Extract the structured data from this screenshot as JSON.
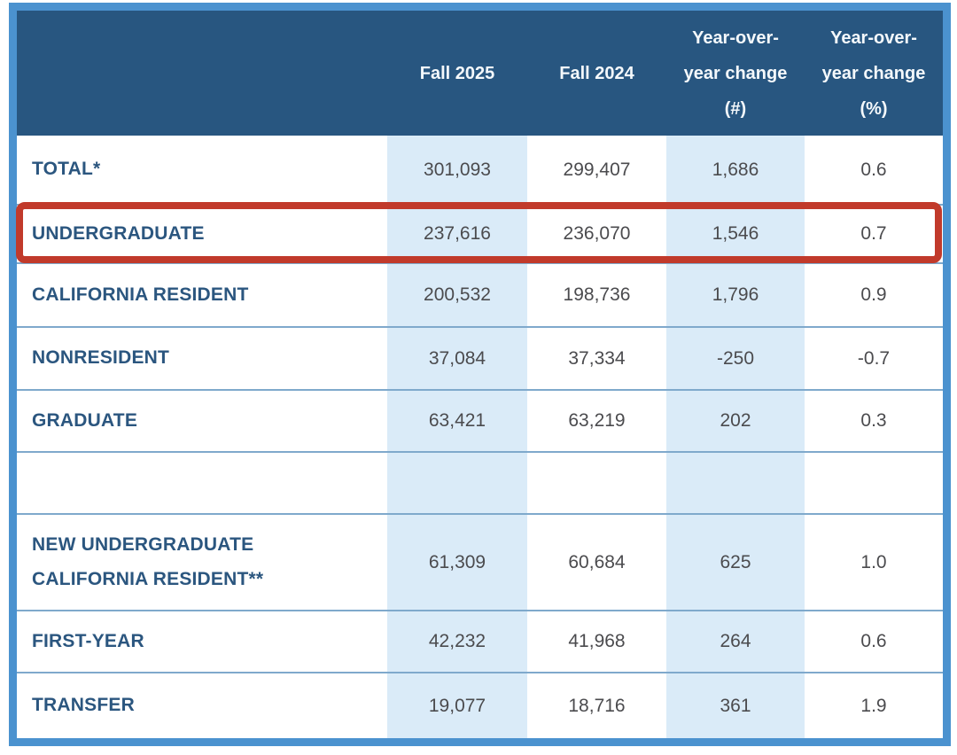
{
  "table": {
    "header": {
      "cols": [
        "Fall 2025",
        "Fall 2024",
        "Year-over-year change (#)",
        "Year-over-year change (%)"
      ]
    },
    "rows": [
      {
        "label": "TOTAL*",
        "values": [
          "301,093",
          "299,407",
          "1,686",
          "0.6"
        ]
      },
      {
        "label": "UNDERGRADUATE",
        "values": [
          "237,616",
          "236,070",
          "1,546",
          "0.7"
        ],
        "highlighted": true
      },
      {
        "label": "CALIFORNIA RESIDENT",
        "values": [
          "200,532",
          "198,736",
          "1,796",
          "0.9"
        ]
      },
      {
        "label": "NONRESIDENT",
        "values": [
          "37,084",
          "37,334",
          "-250",
          "-0.7"
        ]
      },
      {
        "label": "GRADUATE",
        "values": [
          "63,421",
          "63,219",
          "202",
          "0.3"
        ]
      },
      {
        "label": "",
        "values": [
          "",
          "",
          "",
          ""
        ]
      },
      {
        "label": "NEW UNDERGRADUATE CALIFORNIA RESIDENT**",
        "values": [
          "61,309",
          "60,684",
          "625",
          "1.0"
        ]
      },
      {
        "label": "FIRST-YEAR",
        "values": [
          "42,232",
          "41,968",
          "264",
          "0.6"
        ]
      },
      {
        "label": "TRANSFER",
        "values": [
          "19,077",
          "18,716",
          "361",
          "1.9"
        ]
      }
    ]
  },
  "colors": {
    "frame_border": "#4B92CF",
    "header_bg": "#285680",
    "header_text": "#F4F8FB",
    "column_stripe": "#DAEBF8",
    "row_divider": "#7FA9CC",
    "label_text": "#2B567F",
    "number_text": "#4B4B4E",
    "highlight_red": "#C13A2B"
  },
  "chart_data": {
    "type": "table",
    "columns": [
      "",
      "Fall 2025",
      "Fall 2024",
      "Year-over-year change (#)",
      "Year-over-year change (%)"
    ],
    "rows": [
      [
        "TOTAL*",
        301093,
        299407,
        1686,
        0.6
      ],
      [
        "UNDERGRADUATE",
        237616,
        236070,
        1546,
        0.7
      ],
      [
        "CALIFORNIA RESIDENT",
        200532,
        198736,
        1796,
        0.9
      ],
      [
        "NONRESIDENT",
        37084,
        37334,
        -250,
        -0.7
      ],
      [
        "GRADUATE",
        63421,
        63219,
        202,
        0.3
      ],
      [
        "NEW UNDERGRADUATE CALIFORNIA RESIDENT**",
        61309,
        60684,
        625,
        1.0
      ],
      [
        "FIRST-YEAR",
        42232,
        41968,
        264,
        0.6
      ],
      [
        "TRANSFER",
        19077,
        18716,
        361,
        1.9
      ]
    ],
    "highlighted_row": "UNDERGRADUATE",
    "layout": {
      "striped_columns": [
        "Fall 2025",
        "Year-over-year change (#)"
      ],
      "header_style": "dark-blue solid",
      "gridlines": "horizontal only"
    }
  }
}
